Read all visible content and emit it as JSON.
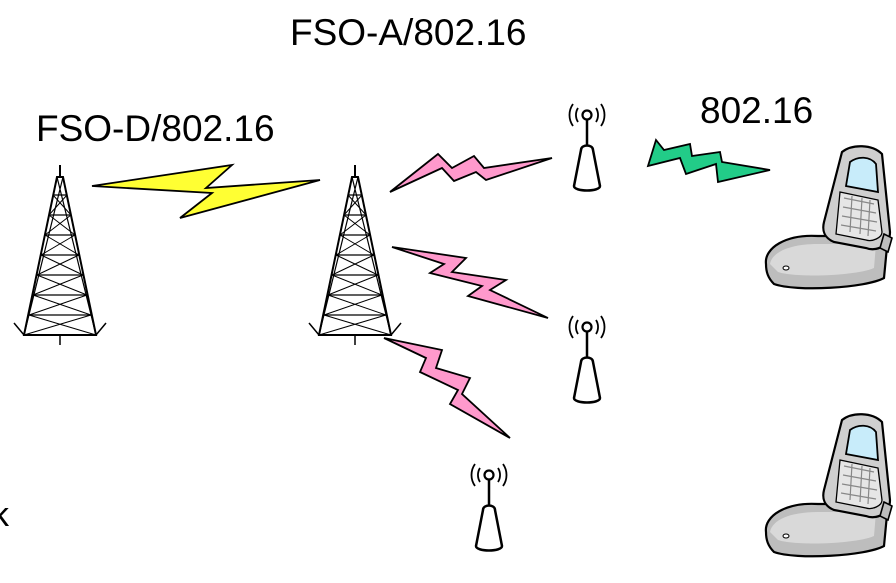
{
  "labels": {
    "fso_a": "FSO-A/802.16",
    "fso_d": "FSO-D/802.16",
    "wimax": "802.16",
    "cut_off": "k"
  },
  "colors": {
    "fso_d_link": "#ffff33",
    "fso_a_links": "#ff99cc",
    "wimax_link": "#22cc88",
    "phone_body": "#c8c8c8",
    "phone_screen": "#c8ecfa",
    "outline": "#000000"
  },
  "icons": {
    "tower": "lattice-tower-icon",
    "antenna": "antenna-icon",
    "phone": "mobile-phone-icon",
    "link": "lightning-bolt-icon"
  }
}
